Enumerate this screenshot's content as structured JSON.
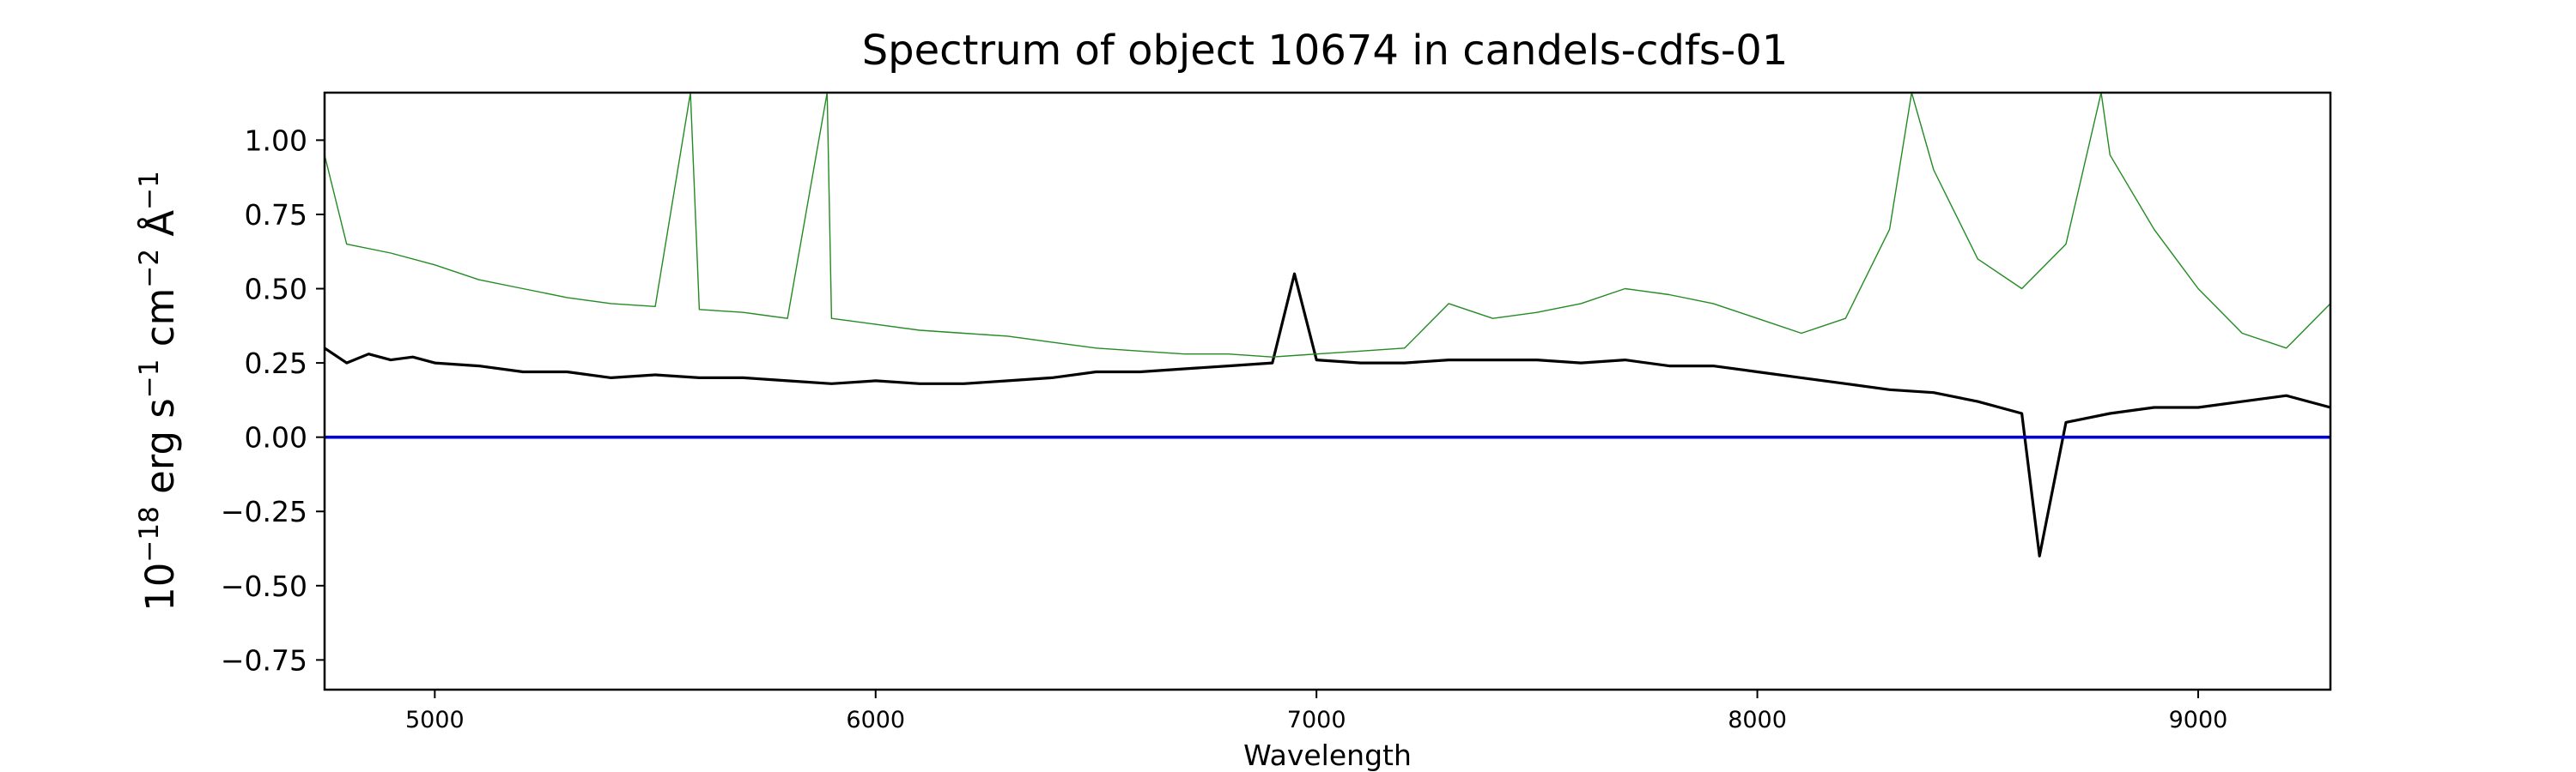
{
  "chart_data": {
    "type": "line",
    "title": "Spectrum of object 10674 in candels-cdfs-01",
    "xlabel": "Wavelength",
    "ylabel_base": "10",
    "ylabel_exp": "−18",
    "ylabel_unit_1": " erg s",
    "ylabel_exp_1": "−1",
    "ylabel_unit_2": " cm",
    "ylabel_exp_2": "−2",
    "ylabel_unit_3": " Å",
    "ylabel_exp_3": "−1",
    "xlim": [
      4750,
      9300
    ],
    "ylim": [
      -0.85,
      1.16
    ],
    "xticks": [
      5000,
      6000,
      7000,
      8000,
      9000
    ],
    "xtick_labels": [
      "5000",
      "6000",
      "7000",
      "8000",
      "9000"
    ],
    "yticks": [
      1.0,
      0.75,
      0.5,
      0.25,
      0.0,
      -0.25,
      -0.5,
      -0.75
    ],
    "ytick_labels": [
      "1.00",
      "0.75",
      "0.50",
      "0.25",
      "0.00",
      "−0.25",
      "−0.50",
      "−0.75"
    ],
    "grid": false,
    "series": [
      {
        "color": "#000000",
        "style": "thick",
        "x": [
          4750,
          4800,
          4850,
          4900,
          4950,
          5000,
          5100,
          5200,
          5300,
          5400,
          5500,
          5600,
          5700,
          5800,
          5900,
          6000,
          6100,
          6200,
          6300,
          6400,
          6500,
          6600,
          6700,
          6800,
          6900,
          6950,
          7000,
          7100,
          7200,
          7300,
          7400,
          7500,
          7600,
          7700,
          7800,
          7900,
          8000,
          8100,
          8200,
          8300,
          8400,
          8500,
          8600,
          8640,
          8700,
          8800,
          8900,
          9000,
          9100,
          9200,
          9300
        ],
        "y": [
          0.3,
          0.25,
          0.28,
          0.26,
          0.27,
          0.25,
          0.24,
          0.22,
          0.22,
          0.2,
          0.21,
          0.2,
          0.2,
          0.19,
          0.18,
          0.19,
          0.18,
          0.18,
          0.19,
          0.2,
          0.22,
          0.22,
          0.23,
          0.24,
          0.25,
          0.55,
          0.26,
          0.25,
          0.25,
          0.26,
          0.26,
          0.26,
          0.25,
          0.26,
          0.24,
          0.24,
          0.22,
          0.2,
          0.18,
          0.16,
          0.15,
          0.12,
          0.08,
          -0.4,
          0.05,
          0.08,
          0.1,
          0.1,
          0.12,
          0.14,
          0.1
        ]
      },
      {
        "color": "#228B22",
        "style": "thin",
        "x": [
          4750,
          4800,
          4900,
          5000,
          5100,
          5200,
          5300,
          5400,
          5500,
          5580,
          5600,
          5700,
          5800,
          5890,
          5900,
          6000,
          6100,
          6200,
          6300,
          6400,
          6500,
          6600,
          6700,
          6800,
          6900,
          7000,
          7100,
          7200,
          7300,
          7400,
          7500,
          7600,
          7700,
          7800,
          7900,
          8000,
          8100,
          8200,
          8300,
          8350,
          8400,
          8500,
          8600,
          8700,
          8780,
          8800,
          8900,
          9000,
          9100,
          9200,
          9300
        ],
        "y": [
          0.95,
          0.65,
          0.62,
          0.58,
          0.53,
          0.5,
          0.47,
          0.45,
          0.44,
          1.16,
          0.43,
          0.42,
          0.4,
          1.16,
          0.4,
          0.38,
          0.36,
          0.35,
          0.34,
          0.32,
          0.3,
          0.29,
          0.28,
          0.28,
          0.27,
          0.28,
          0.29,
          0.3,
          0.45,
          0.4,
          0.42,
          0.45,
          0.5,
          0.48,
          0.45,
          0.4,
          0.35,
          0.4,
          0.7,
          1.16,
          0.9,
          0.6,
          0.5,
          0.65,
          1.16,
          0.95,
          0.7,
          0.5,
          0.35,
          0.3,
          0.45
        ]
      },
      {
        "color": "#0000cc",
        "style": "zero",
        "x": [
          4750,
          9300
        ],
        "y": [
          0.0,
          0.0
        ]
      }
    ]
  }
}
